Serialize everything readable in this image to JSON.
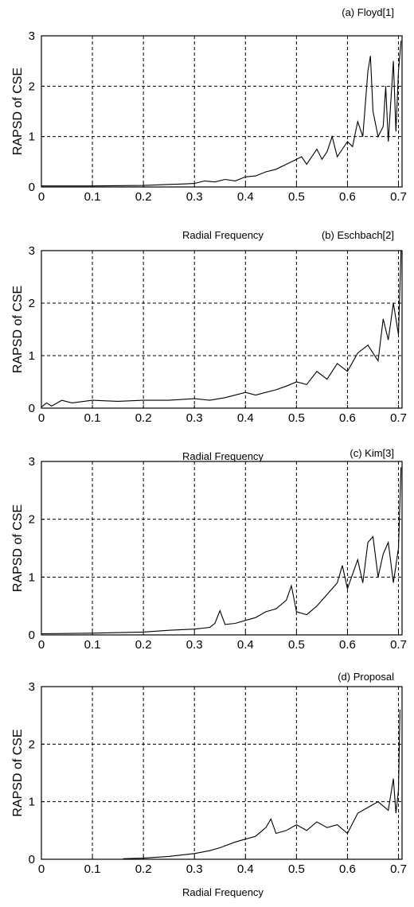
{
  "chart_data": [
    {
      "type": "line",
      "panel_label": "(a) Floyd[1]",
      "xlabel": "",
      "ylabel": "RAPSD of CSE",
      "xlim": [
        0,
        0.707
      ],
      "ylim": [
        0,
        3
      ],
      "xticks": [
        "0",
        "0.1",
        "0.2",
        "0.3",
        "0.4",
        "0.5",
        "0.6",
        "0.7"
      ],
      "yticks": [
        "0",
        "1",
        "2",
        "3"
      ],
      "grid": true,
      "series": [
        {
          "x": [
            0,
            0.1,
            0.2,
            0.25,
            0.28,
            0.3,
            0.32,
            0.34,
            0.36,
            0.38,
            0.4,
            0.42,
            0.44,
            0.46,
            0.48,
            0.5,
            0.51,
            0.52,
            0.54,
            0.55,
            0.56,
            0.57,
            0.58,
            0.59,
            0.6,
            0.61,
            0.62,
            0.63,
            0.64,
            0.645,
            0.65,
            0.66,
            0.67,
            0.675,
            0.68,
            0.69,
            0.695,
            0.7,
            0.705
          ],
          "y": [
            0.02,
            0.02,
            0.03,
            0.05,
            0.06,
            0.07,
            0.12,
            0.1,
            0.15,
            0.12,
            0.2,
            0.22,
            0.3,
            0.35,
            0.45,
            0.55,
            0.6,
            0.45,
            0.75,
            0.55,
            0.7,
            1.0,
            0.6,
            0.75,
            0.9,
            0.8,
            1.3,
            1.0,
            2.3,
            2.6,
            1.5,
            1.0,
            1.2,
            2.0,
            0.9,
            2.5,
            1.1,
            2.3,
            2.9
          ]
        }
      ]
    },
    {
      "type": "line",
      "panel_label": "(b) Eschbach[2]",
      "xlabel": "Radial Frequency",
      "ylabel": "RAPSD of CSE",
      "xlim": [
        0,
        0.707
      ],
      "ylim": [
        0,
        3
      ],
      "xticks": [
        "0",
        "0.1",
        "0.2",
        "0.3",
        "0.4",
        "0.5",
        "0.6",
        "0.7"
      ],
      "yticks": [
        "0",
        "1",
        "2",
        "3"
      ],
      "grid": true,
      "series": [
        {
          "x": [
            0,
            0.01,
            0.02,
            0.04,
            0.06,
            0.1,
            0.15,
            0.2,
            0.25,
            0.3,
            0.33,
            0.36,
            0.4,
            0.42,
            0.44,
            0.46,
            0.48,
            0.5,
            0.52,
            0.54,
            0.56,
            0.58,
            0.6,
            0.62,
            0.64,
            0.66,
            0.67,
            0.68,
            0.69,
            0.7,
            0.705
          ],
          "y": [
            0.02,
            0.1,
            0.04,
            0.15,
            0.1,
            0.15,
            0.13,
            0.15,
            0.15,
            0.18,
            0.15,
            0.2,
            0.3,
            0.25,
            0.3,
            0.35,
            0.42,
            0.5,
            0.45,
            0.7,
            0.55,
            0.85,
            0.7,
            1.05,
            1.2,
            0.9,
            1.7,
            1.3,
            2.0,
            1.4,
            3.0
          ]
        }
      ]
    },
    {
      "type": "line",
      "panel_label": "(c) Kim[3]",
      "xlabel": "Radial Frequency",
      "ylabel": "RAPSD of CSE",
      "xlim": [
        0,
        0.707
      ],
      "ylim": [
        0,
        3
      ],
      "xticks": [
        "0",
        "0.1",
        "0.2",
        "0.3",
        "0.4",
        "0.5",
        "0.6",
        "0.7"
      ],
      "yticks": [
        "0",
        "1",
        "2",
        "3"
      ],
      "grid": true,
      "series": [
        {
          "x": [
            0,
            0.1,
            0.2,
            0.25,
            0.3,
            0.33,
            0.34,
            0.35,
            0.36,
            0.38,
            0.4,
            0.42,
            0.44,
            0.46,
            0.48,
            0.49,
            0.5,
            0.52,
            0.54,
            0.56,
            0.58,
            0.59,
            0.6,
            0.62,
            0.63,
            0.64,
            0.65,
            0.66,
            0.67,
            0.68,
            0.69,
            0.7,
            0.705
          ],
          "y": [
            0.02,
            0.03,
            0.05,
            0.08,
            0.1,
            0.13,
            0.2,
            0.42,
            0.18,
            0.2,
            0.25,
            0.3,
            0.4,
            0.45,
            0.6,
            0.85,
            0.4,
            0.35,
            0.5,
            0.7,
            0.9,
            1.2,
            0.8,
            1.3,
            0.9,
            1.6,
            1.7,
            1.0,
            1.4,
            1.6,
            0.9,
            1.5,
            2.9
          ]
        }
      ]
    },
    {
      "type": "line",
      "panel_label": "(d) Proposal",
      "xlabel": "Radial Frequency",
      "ylabel": "RAPSD of CSE",
      "xlim": [
        0,
        0.707
      ],
      "ylim": [
        0,
        3
      ],
      "xticks": [
        "0",
        "0.1",
        "0.2",
        "0.3",
        "0.4",
        "0.5",
        "0.6",
        "0.7"
      ],
      "yticks": [
        "0",
        "1",
        "2",
        "3"
      ],
      "grid": true,
      "series": [
        {
          "x": [
            0.16,
            0.2,
            0.25,
            0.3,
            0.33,
            0.35,
            0.38,
            0.4,
            0.42,
            0.44,
            0.45,
            0.46,
            0.48,
            0.5,
            0.52,
            0.54,
            0.56,
            0.58,
            0.6,
            0.62,
            0.64,
            0.66,
            0.68,
            0.69,
            0.695,
            0.7,
            0.703
          ],
          "y": [
            0.01,
            0.02,
            0.05,
            0.1,
            0.15,
            0.2,
            0.3,
            0.35,
            0.4,
            0.55,
            0.7,
            0.45,
            0.5,
            0.6,
            0.5,
            0.65,
            0.55,
            0.6,
            0.45,
            0.8,
            0.9,
            1.0,
            0.85,
            1.4,
            0.8,
            1.2,
            2.6
          ]
        }
      ]
    }
  ]
}
